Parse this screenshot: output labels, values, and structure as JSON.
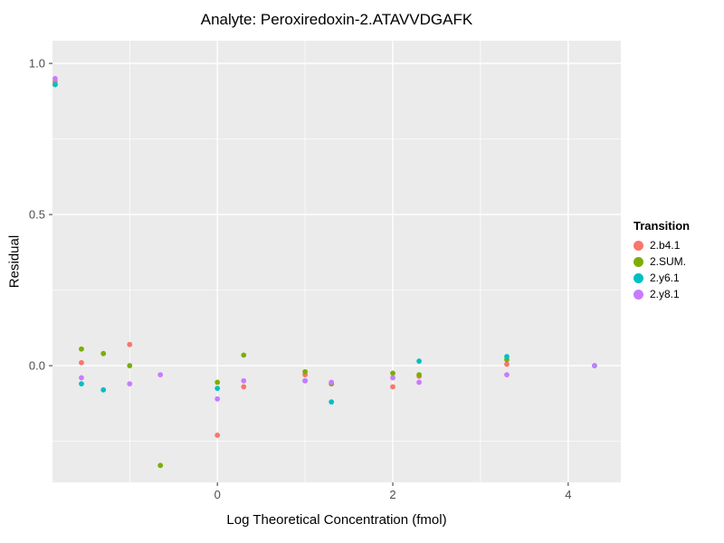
{
  "title": "Analyte: Peroxiredoxin-2.ATAVVDGAFK",
  "chart_data": {
    "type": "scatter",
    "title": "Analyte: Peroxiredoxin-2.ATAVVDGAFK",
    "xlabel": "Log Theoretical Concentration (fmol)",
    "ylabel": "Residual",
    "xlim": [
      -1.88,
      4.6
    ],
    "ylim": [
      -0.386,
      1.075
    ],
    "x_ticks": {
      "major": [
        0,
        2,
        4
      ],
      "labels": [
        "0",
        "2",
        "4"
      ],
      "minor": [
        -1,
        1,
        3
      ]
    },
    "y_ticks": {
      "major": [
        0,
        0.5,
        1.0
      ],
      "labels": [
        "0.0",
        "0.5",
        "1.0"
      ],
      "minor": [
        -0.25,
        0.25,
        0.75
      ]
    },
    "grid": true,
    "panel_bg": "#EBEBEB",
    "grid_major_color": "#FFFFFF",
    "grid_minor_color": "#FFFFFF",
    "tick_color": "#333333",
    "tick_label_color": "#4D4D4D",
    "legend": {
      "title": "Transition",
      "position": "right"
    },
    "series": [
      {
        "name": "2.b4.1",
        "color": "#F8766D",
        "points": [
          [
            -1.85,
            0.94
          ],
          [
            -1.55,
            0.01
          ],
          [
            -1.0,
            0.07
          ],
          [
            0.0,
            -0.23
          ],
          [
            0.3,
            -0.07
          ],
          [
            1.0,
            -0.03
          ],
          [
            1.3,
            -0.06
          ],
          [
            2.0,
            -0.07
          ],
          [
            2.3,
            -0.035
          ],
          [
            3.3,
            0.005
          ]
        ]
      },
      {
        "name": "2.SUM.",
        "color": "#7CAE00",
        "points": [
          [
            -1.85,
            0.93
          ],
          [
            -1.55,
            0.055
          ],
          [
            -1.3,
            0.04
          ],
          [
            -1.0,
            0.0
          ],
          [
            -0.65,
            -0.33
          ],
          [
            0.0,
            -0.055
          ],
          [
            0.3,
            0.035
          ],
          [
            1.0,
            -0.02
          ],
          [
            1.3,
            -0.06
          ],
          [
            2.0,
            -0.025
          ],
          [
            2.3,
            -0.03
          ],
          [
            3.3,
            0.02
          ]
        ]
      },
      {
        "name": "2.y6.1",
        "color": "#00BFC4",
        "points": [
          [
            -1.85,
            0.93
          ],
          [
            -1.55,
            -0.06
          ],
          [
            -1.3,
            -0.08
          ],
          [
            0.0,
            -0.075
          ],
          [
            1.0,
            -0.05
          ],
          [
            1.3,
            -0.12
          ],
          [
            2.3,
            0.015
          ],
          [
            3.3,
            0.03
          ],
          [
            4.3,
            0.0
          ]
        ]
      },
      {
        "name": "2.y8.1",
        "color": "#C77CFF",
        "points": [
          [
            -1.85,
            0.95
          ],
          [
            -1.55,
            -0.04
          ],
          [
            -1.0,
            -0.06
          ],
          [
            -0.65,
            -0.03
          ],
          [
            0.0,
            -0.11
          ],
          [
            0.3,
            -0.05
          ],
          [
            1.0,
            -0.05
          ],
          [
            1.3,
            -0.055
          ],
          [
            2.0,
            -0.04
          ],
          [
            2.3,
            -0.055
          ],
          [
            3.3,
            -0.03
          ],
          [
            4.3,
            0.0
          ]
        ]
      }
    ]
  }
}
